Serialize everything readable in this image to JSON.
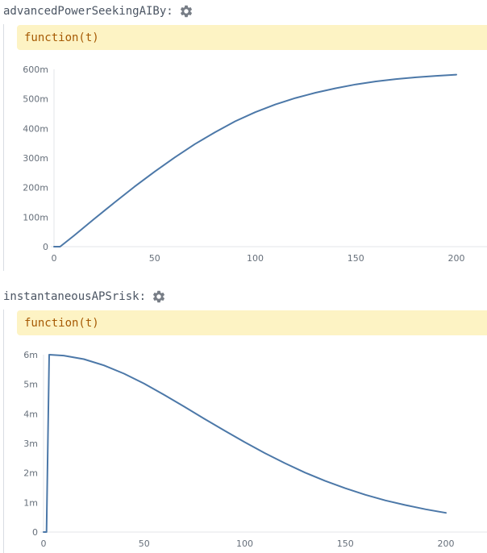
{
  "variables": [
    {
      "name": "advancedPowerSeekingAIBy:",
      "gear_icon": "gear-icon",
      "expression": "function(t)",
      "chart_data": {
        "type": "line",
        "title": "",
        "xlabel": "",
        "ylabel": "",
        "xlim": [
          0,
          200
        ],
        "ylim": [
          0,
          0.6
        ],
        "x_ticks": [
          0,
          50,
          100,
          150,
          200
        ],
        "x_tick_labels": [
          "0",
          "50",
          "100",
          "150",
          "200"
        ],
        "y_ticks": [
          0,
          0.1,
          0.2,
          0.3,
          0.4,
          0.5,
          0.6
        ],
        "y_tick_labels": [
          "0",
          "100m",
          "200m",
          "300m",
          "400m",
          "500m",
          "600m"
        ],
        "grid": false,
        "line_color": "#4c78a8",
        "x": [
          0,
          3,
          10,
          20,
          30,
          40,
          50,
          60,
          70,
          80,
          90,
          100,
          110,
          120,
          130,
          140,
          150,
          160,
          170,
          180,
          190,
          200
        ],
        "y": [
          0,
          0,
          0.038,
          0.094,
          0.149,
          0.203,
          0.254,
          0.302,
          0.347,
          0.387,
          0.424,
          0.455,
          0.481,
          0.503,
          0.521,
          0.536,
          0.549,
          0.559,
          0.567,
          0.573,
          0.578,
          0.582
        ]
      }
    },
    {
      "name": "instantaneousAPSrisk:",
      "gear_icon": "gear-icon",
      "expression": "function(t)",
      "chart_data": {
        "type": "line",
        "title": "",
        "xlabel": "",
        "ylabel": "",
        "xlim": [
          0,
          200
        ],
        "ylim": [
          0,
          0.006
        ],
        "x_ticks": [
          0,
          50,
          100,
          150,
          200
        ],
        "x_tick_labels": [
          "0",
          "50",
          "100",
          "150",
          "200"
        ],
        "y_ticks": [
          0,
          0.001,
          0.002,
          0.003,
          0.004,
          0.005,
          0.006
        ],
        "y_tick_labels": [
          "0",
          "1m",
          "2m",
          "3m",
          "4m",
          "5m",
          "6m"
        ],
        "grid": false,
        "line_color": "#4c78a8",
        "x": [
          0,
          1.5,
          2.8,
          10,
          20,
          30,
          40,
          50,
          60,
          70,
          80,
          90,
          100,
          110,
          120,
          130,
          140,
          150,
          160,
          170,
          180,
          190,
          200
        ],
        "y": [
          0,
          0,
          0.006,
          0.00597,
          0.00585,
          0.00564,
          0.00536,
          0.00502,
          0.00464,
          0.00424,
          0.00383,
          0.00343,
          0.00304,
          0.00267,
          0.00233,
          0.00201,
          0.00173,
          0.00148,
          0.00126,
          0.00107,
          0.00091,
          0.00077,
          0.00065
        ]
      }
    }
  ]
}
